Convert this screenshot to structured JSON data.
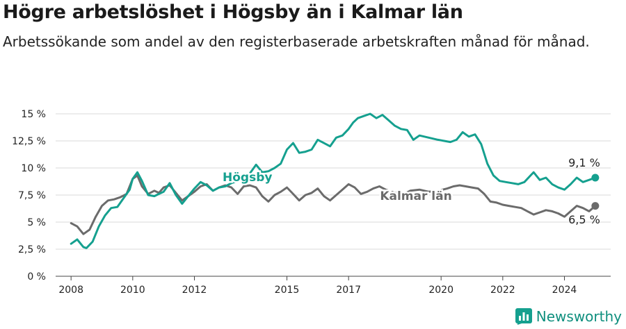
{
  "title": "Högre arbetslöshet i Högsby än i Kalmar län",
  "subtitle": "Arbetssökande som andel av den registerbaserade arbetskraften månad för månad.",
  "brand": {
    "name": "Newsworthy",
    "icon": "bar-chart-logo-icon",
    "color": "#15a08f"
  },
  "chart_data": {
    "type": "line",
    "title": "Högre arbetslöshet i Högsby än i Kalmar län",
    "subtitle": "Arbetssökande som andel av den registerbaserade arbetskraften månad för månad.",
    "xlabel": "",
    "ylabel": "",
    "xlim": [
      2007.5,
      2025.5
    ],
    "ylim": [
      0,
      15
    ],
    "x_ticks": [
      2008,
      2010,
      2012,
      2015,
      2017,
      2020,
      2022,
      2024
    ],
    "y_ticks": [
      {
        "value": 0,
        "label": "0 %"
      },
      {
        "value": 2.5,
        "label": "2,5 %"
      },
      {
        "value": 5,
        "label": "5 %"
      },
      {
        "value": 7.5,
        "label": "7,5 %"
      },
      {
        "value": 10,
        "label": "10 %"
      },
      {
        "value": 12.5,
        "label": "12,5 %"
      },
      {
        "value": 15,
        "label": "15 %"
      }
    ],
    "grid": true,
    "legend": "direct labels",
    "series": [
      {
        "name": "Kalmar län",
        "color": "#6b6b6b",
        "end_label": "6,5 %",
        "points": [
          [
            2008.0,
            4.9
          ],
          [
            2008.2,
            4.6
          ],
          [
            2008.4,
            3.9
          ],
          [
            2008.6,
            4.3
          ],
          [
            2008.8,
            5.5
          ],
          [
            2009.0,
            6.5
          ],
          [
            2009.2,
            7.0
          ],
          [
            2009.4,
            7.1
          ],
          [
            2009.6,
            7.3
          ],
          [
            2009.8,
            7.6
          ],
          [
            2010.0,
            9.0
          ],
          [
            2010.15,
            9.3
          ],
          [
            2010.3,
            8.3
          ],
          [
            2010.5,
            7.6
          ],
          [
            2010.7,
            7.9
          ],
          [
            2010.85,
            7.7
          ],
          [
            2011.0,
            8.2
          ],
          [
            2011.2,
            8.4
          ],
          [
            2011.4,
            7.7
          ],
          [
            2011.6,
            7.0
          ],
          [
            2011.8,
            7.4
          ],
          [
            2012.0,
            7.8
          ],
          [
            2012.2,
            8.3
          ],
          [
            2012.4,
            8.5
          ],
          [
            2012.6,
            7.9
          ],
          [
            2012.8,
            8.2
          ],
          [
            2013.0,
            8.4
          ],
          [
            2013.2,
            8.2
          ],
          [
            2013.4,
            7.6
          ],
          [
            2013.6,
            8.3
          ],
          [
            2013.8,
            8.4
          ],
          [
            2014.0,
            8.2
          ],
          [
            2014.2,
            7.4
          ],
          [
            2014.4,
            6.9
          ],
          [
            2014.6,
            7.5
          ],
          [
            2014.8,
            7.8
          ],
          [
            2015.0,
            8.2
          ],
          [
            2015.2,
            7.6
          ],
          [
            2015.4,
            7.0
          ],
          [
            2015.6,
            7.5
          ],
          [
            2015.8,
            7.7
          ],
          [
            2016.0,
            8.1
          ],
          [
            2016.2,
            7.4
          ],
          [
            2016.4,
            7.0
          ],
          [
            2016.6,
            7.5
          ],
          [
            2016.8,
            8.0
          ],
          [
            2017.0,
            8.5
          ],
          [
            2017.2,
            8.2
          ],
          [
            2017.4,
            7.6
          ],
          [
            2017.6,
            7.8
          ],
          [
            2017.8,
            8.1
          ],
          [
            2018.0,
            8.3
          ],
          [
            2018.2,
            8.0
          ],
          [
            2018.5,
            7.7
          ],
          [
            2018.8,
            7.6
          ],
          [
            2019.0,
            7.9
          ],
          [
            2019.3,
            8.0
          ],
          [
            2019.6,
            7.8
          ],
          [
            2019.9,
            7.9
          ],
          [
            2020.2,
            8.1
          ],
          [
            2020.4,
            8.3
          ],
          [
            2020.6,
            8.4
          ],
          [
            2020.8,
            8.3
          ],
          [
            2021.0,
            8.2
          ],
          [
            2021.2,
            8.1
          ],
          [
            2021.4,
            7.6
          ],
          [
            2021.6,
            6.9
          ],
          [
            2021.8,
            6.8
          ],
          [
            2022.0,
            6.6
          ],
          [
            2022.2,
            6.5
          ],
          [
            2022.4,
            6.4
          ],
          [
            2022.6,
            6.3
          ],
          [
            2022.8,
            6.0
          ],
          [
            2023.0,
            5.7
          ],
          [
            2023.2,
            5.9
          ],
          [
            2023.4,
            6.1
          ],
          [
            2023.6,
            6.0
          ],
          [
            2023.8,
            5.8
          ],
          [
            2024.0,
            5.5
          ],
          [
            2024.2,
            6.0
          ],
          [
            2024.4,
            6.5
          ],
          [
            2024.6,
            6.3
          ],
          [
            2024.8,
            6.0
          ],
          [
            2025.0,
            6.5
          ]
        ]
      },
      {
        "name": "Högsby",
        "color": "#15a08f",
        "end_label": "9,1 %",
        "points": [
          [
            2008.0,
            3.0
          ],
          [
            2008.2,
            3.4
          ],
          [
            2008.4,
            2.7
          ],
          [
            2008.5,
            2.6
          ],
          [
            2008.7,
            3.2
          ],
          [
            2008.9,
            4.6
          ],
          [
            2009.1,
            5.6
          ],
          [
            2009.3,
            6.3
          ],
          [
            2009.5,
            6.4
          ],
          [
            2009.7,
            7.2
          ],
          [
            2009.9,
            8.0
          ],
          [
            2010.0,
            9.0
          ],
          [
            2010.15,
            9.6
          ],
          [
            2010.3,
            8.8
          ],
          [
            2010.5,
            7.5
          ],
          [
            2010.7,
            7.4
          ],
          [
            2010.85,
            7.6
          ],
          [
            2011.0,
            7.8
          ],
          [
            2011.2,
            8.6
          ],
          [
            2011.4,
            7.5
          ],
          [
            2011.6,
            6.7
          ],
          [
            2011.8,
            7.4
          ],
          [
            2012.0,
            8.1
          ],
          [
            2012.2,
            8.7
          ],
          [
            2012.4,
            8.4
          ],
          [
            2012.6,
            7.9
          ],
          [
            2012.8,
            8.2
          ],
          [
            2013.0,
            8.3
          ],
          [
            2013.2,
            8.6
          ],
          [
            2013.5,
            8.9
          ],
          [
            2013.8,
            9.5
          ],
          [
            2014.0,
            10.3
          ],
          [
            2014.2,
            9.6
          ],
          [
            2014.4,
            9.7
          ],
          [
            2014.6,
            10.0
          ],
          [
            2014.8,
            10.4
          ],
          [
            2015.0,
            11.7
          ],
          [
            2015.2,
            12.3
          ],
          [
            2015.4,
            11.4
          ],
          [
            2015.6,
            11.5
          ],
          [
            2015.8,
            11.7
          ],
          [
            2016.0,
            12.6
          ],
          [
            2016.2,
            12.3
          ],
          [
            2016.4,
            12.0
          ],
          [
            2016.6,
            12.8
          ],
          [
            2016.8,
            13.0
          ],
          [
            2017.0,
            13.6
          ],
          [
            2017.15,
            14.2
          ],
          [
            2017.3,
            14.6
          ],
          [
            2017.5,
            14.8
          ],
          [
            2017.7,
            15.0
          ],
          [
            2017.9,
            14.6
          ],
          [
            2018.1,
            14.9
          ],
          [
            2018.3,
            14.4
          ],
          [
            2018.5,
            13.9
          ],
          [
            2018.7,
            13.6
          ],
          [
            2018.9,
            13.5
          ],
          [
            2019.1,
            12.6
          ],
          [
            2019.3,
            13.0
          ],
          [
            2019.6,
            12.8
          ],
          [
            2019.9,
            12.6
          ],
          [
            2020.1,
            12.5
          ],
          [
            2020.3,
            12.4
          ],
          [
            2020.5,
            12.6
          ],
          [
            2020.7,
            13.3
          ],
          [
            2020.9,
            12.9
          ],
          [
            2021.1,
            13.1
          ],
          [
            2021.3,
            12.2
          ],
          [
            2021.5,
            10.4
          ],
          [
            2021.7,
            9.3
          ],
          [
            2021.9,
            8.8
          ],
          [
            2022.1,
            8.7
          ],
          [
            2022.3,
            8.6
          ],
          [
            2022.5,
            8.5
          ],
          [
            2022.7,
            8.7
          ],
          [
            2022.9,
            9.3
          ],
          [
            2023.0,
            9.6
          ],
          [
            2023.2,
            8.9
          ],
          [
            2023.4,
            9.1
          ],
          [
            2023.6,
            8.5
          ],
          [
            2023.8,
            8.2
          ],
          [
            2024.0,
            8.0
          ],
          [
            2024.2,
            8.5
          ],
          [
            2024.4,
            9.1
          ],
          [
            2024.6,
            8.7
          ],
          [
            2024.8,
            8.9
          ],
          [
            2025.0,
            9.1
          ]
        ]
      }
    ]
  }
}
